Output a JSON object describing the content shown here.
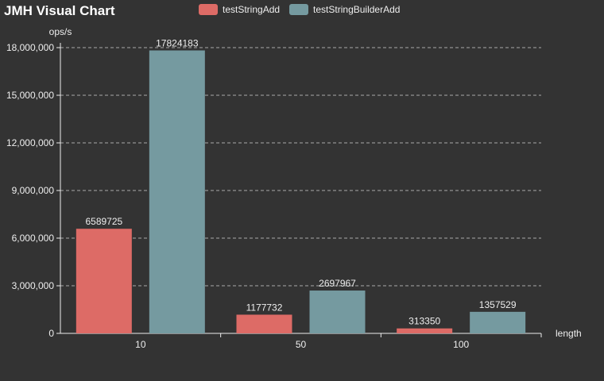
{
  "chart_data": {
    "type": "bar",
    "title": "JMH Visual Chart",
    "xlabel": "length",
    "ylabel": "ops/s",
    "categories": [
      "10",
      "50",
      "100"
    ],
    "series": [
      {
        "name": "testStringAdd",
        "values": [
          6589725,
          1177732,
          313350
        ],
        "color": "#dd6b66"
      },
      {
        "name": "testStringBuilderAdd",
        "values": [
          17824183,
          2697967,
          1357529
        ],
        "color": "#759aa0"
      }
    ],
    "ylim": [
      0,
      18000000
    ],
    "yticks": [
      0,
      3000000,
      6000000,
      9000000,
      12000000,
      15000000,
      18000000
    ],
    "ytick_labels": [
      "0",
      "3,000,000",
      "6,000,000",
      "9,000,000",
      "12,000,000",
      "15,000,000",
      "18,000,000"
    ],
    "grid": true,
    "legend_position": "top"
  }
}
